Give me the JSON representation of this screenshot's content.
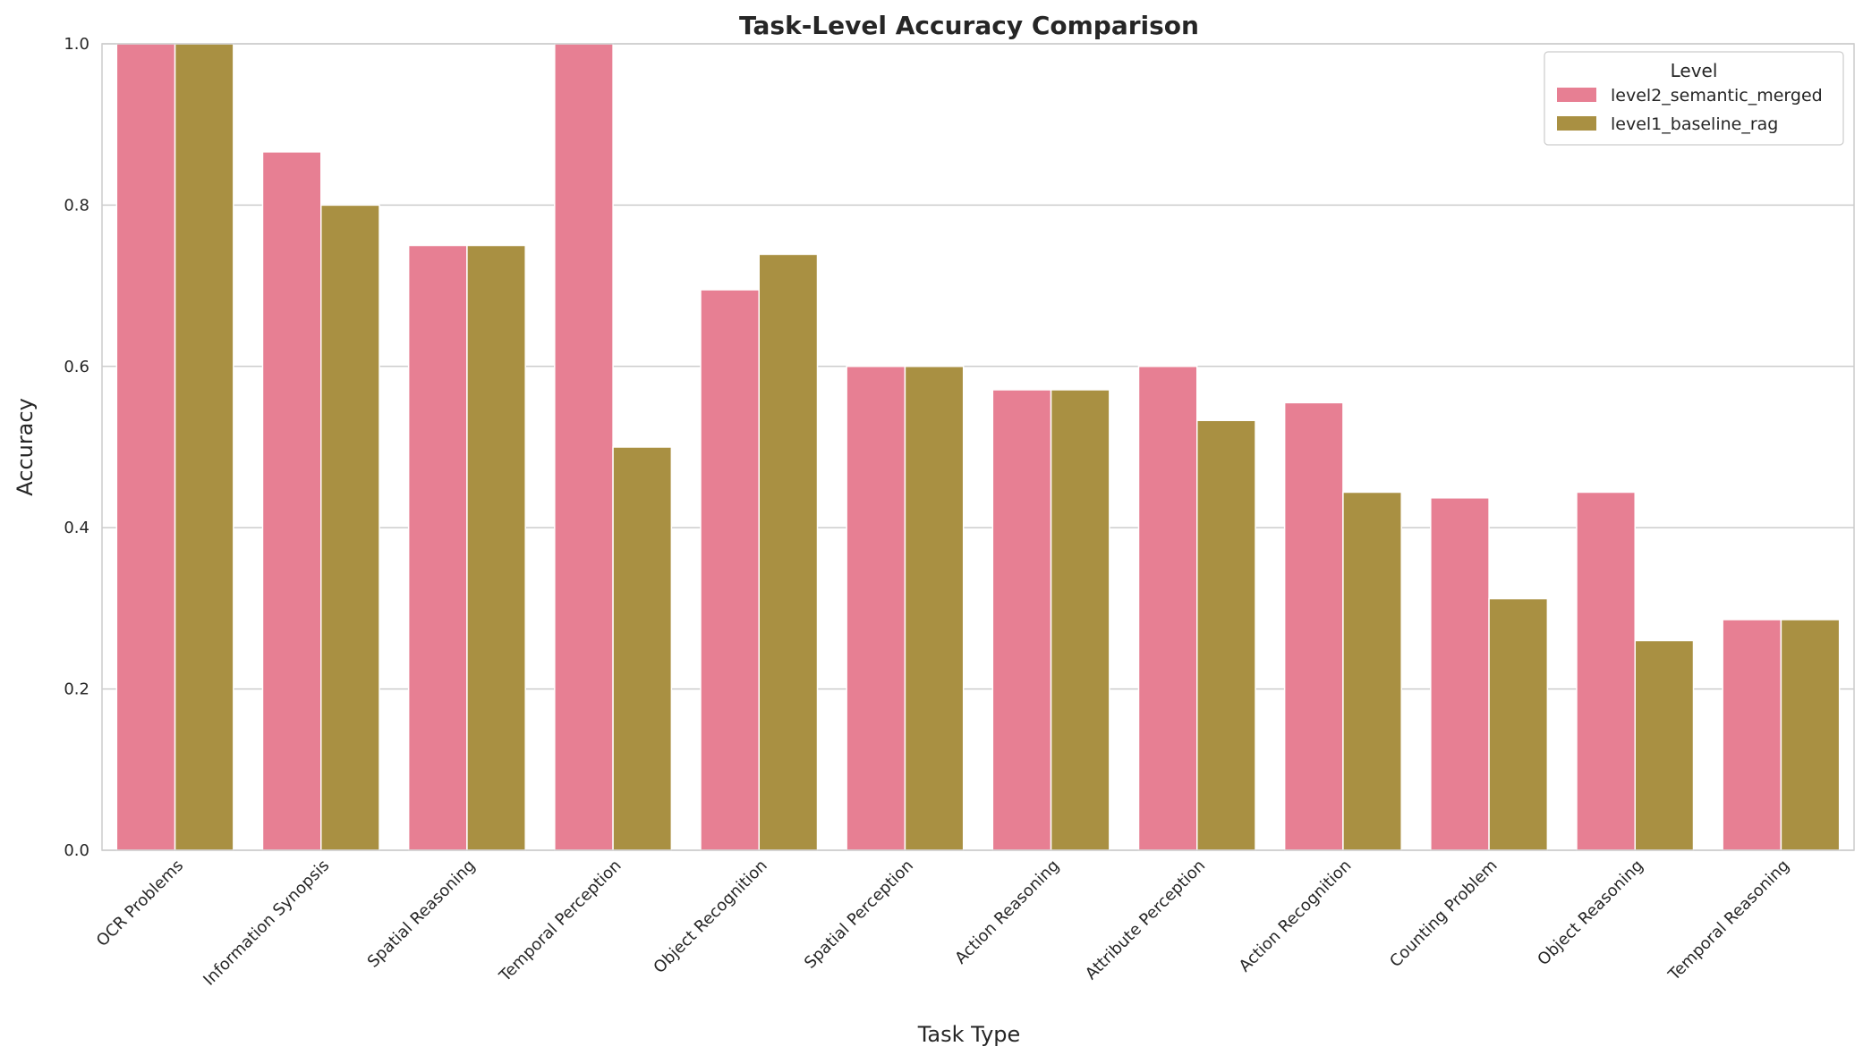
{
  "chart_data": {
    "type": "bar",
    "title": "Task-Level Accuracy Comparison",
    "xlabel": "Task Type",
    "ylabel": "Accuracy",
    "ylim": [
      0,
      1.0
    ],
    "yticks": [
      "0.0",
      "0.2",
      "0.4",
      "0.6",
      "0.8",
      "1.0"
    ],
    "grid": "horizontal",
    "legend": {
      "title": "Level",
      "placement": "top-right"
    },
    "categories": [
      "OCR Problems",
      "Information Synopsis",
      "Spatial Reasoning",
      "Temporal Perception",
      "Object Recognition",
      "Spatial Perception",
      "Action Reasoning",
      "Attribute Perception",
      "Action Recognition",
      "Counting Problem",
      "Object Reasoning",
      "Temporal Reasoning"
    ],
    "series": [
      {
        "name": "level2_semantic_merged",
        "color": "#e77f93",
        "values": [
          1.0,
          0.866,
          0.75,
          1.0,
          0.695,
          0.6,
          0.571,
          0.6,
          0.555,
          0.437,
          0.444,
          0.286
        ]
      },
      {
        "name": "level1_baseline_rag",
        "color": "#a99042",
        "values": [
          1.0,
          0.8,
          0.75,
          0.5,
          0.739,
          0.6,
          0.571,
          0.533,
          0.444,
          0.312,
          0.26,
          0.286
        ]
      }
    ]
  }
}
